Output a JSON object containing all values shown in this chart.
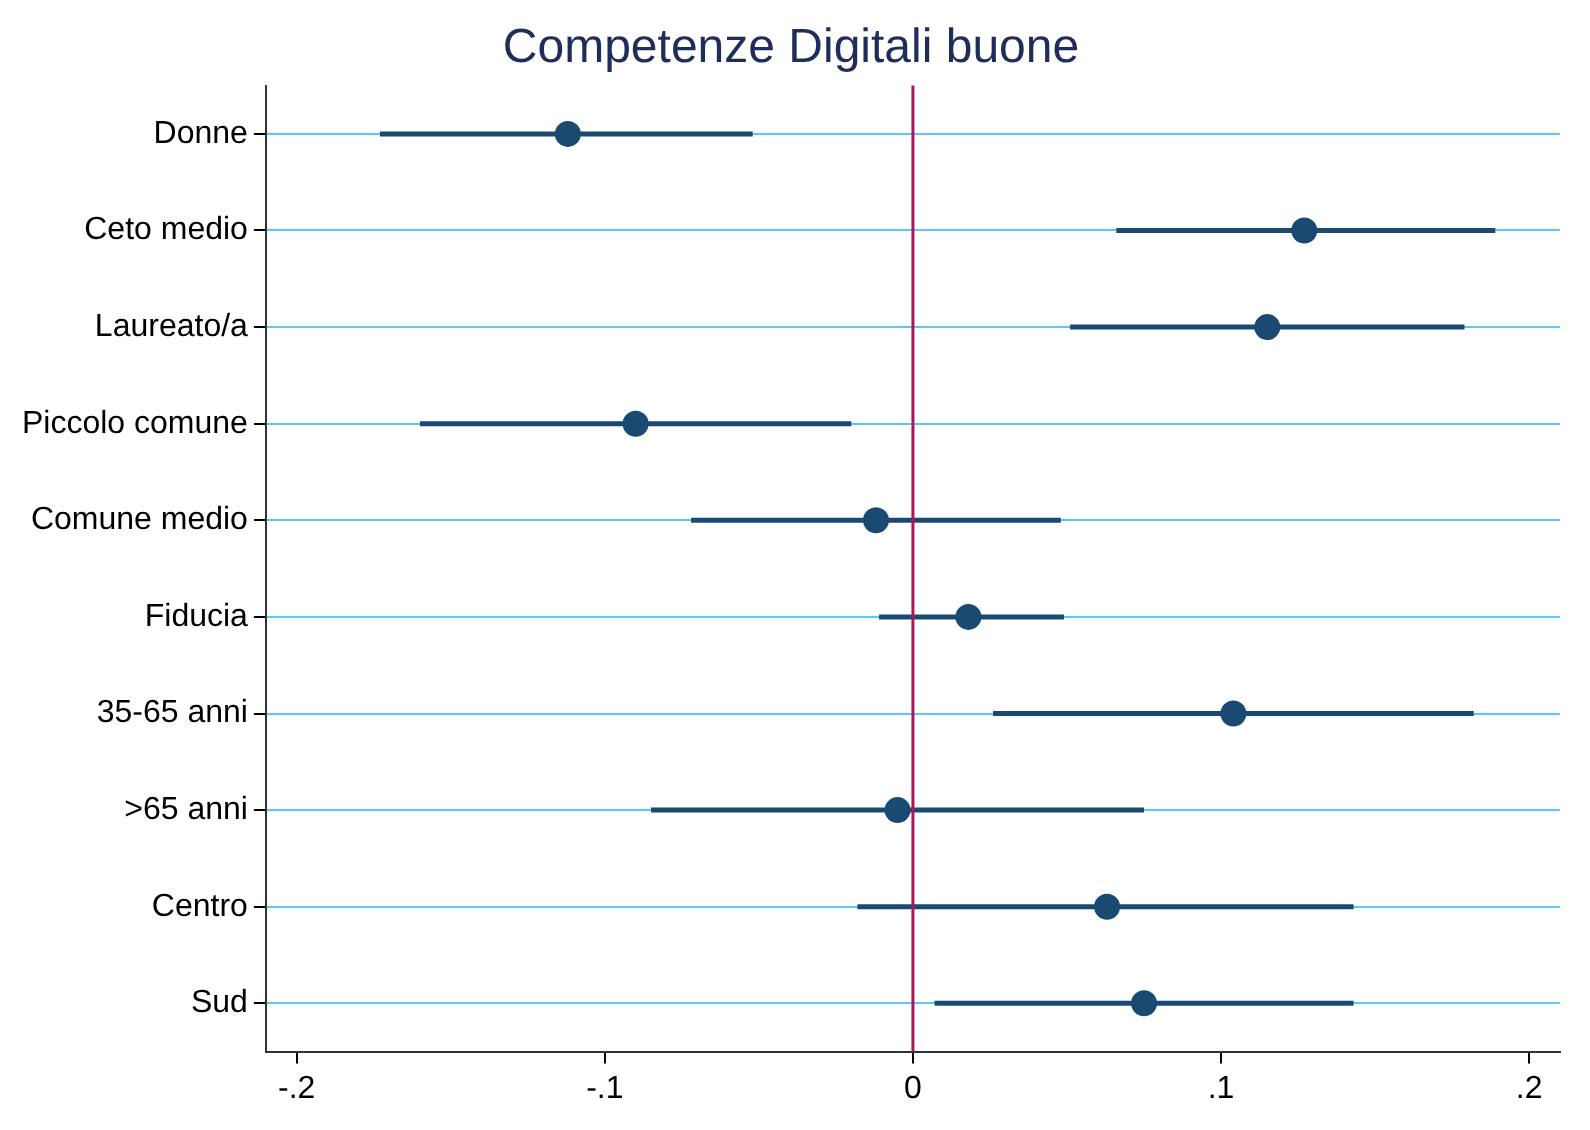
{
  "chart_data": {
    "type": "scatter",
    "orientation": "horizontal",
    "title": "Competenze Digitali buone",
    "categories": [
      "Donne",
      "Ceto medio",
      "Laureato/a",
      "Piccolo comune",
      "Comune medio",
      "Fiducia",
      "35-65 anni",
      ">65 anni",
      "Centro",
      "Sud"
    ],
    "color": "#1a4a72",
    "values": [
      -0.112,
      0.127,
      0.115,
      -0.09,
      -0.012,
      0.018,
      0.104,
      -0.005,
      0.063,
      0.075
    ],
    "errors": [
      [
        -0.173,
        -0.052
      ],
      [
        0.066,
        0.189
      ],
      [
        0.051,
        0.179
      ],
      [
        -0.16,
        -0.02
      ],
      [
        -0.072,
        0.048
      ],
      [
        -0.011,
        0.049
      ],
      [
        0.026,
        0.182
      ],
      [
        -0.085,
        0.075
      ],
      [
        -0.018,
        0.143
      ],
      [
        0.007,
        0.143
      ]
    ],
    "xlim": [
      -0.21,
      0.21
    ],
    "xticks": [
      {
        "value": -0.2,
        "label": "-.2"
      },
      {
        "value": -0.1,
        "label": "-.1"
      },
      0,
      {
        "value": 0.1,
        "label": ".1"
      },
      {
        "value": 0.2,
        "label": ".2"
      }
    ],
    "ref_lines": [
      {
        "axis": "x",
        "value": 0,
        "color": "#a3195b"
      }
    ],
    "grid": "y",
    "marker": "circle",
    "legend": false
  }
}
